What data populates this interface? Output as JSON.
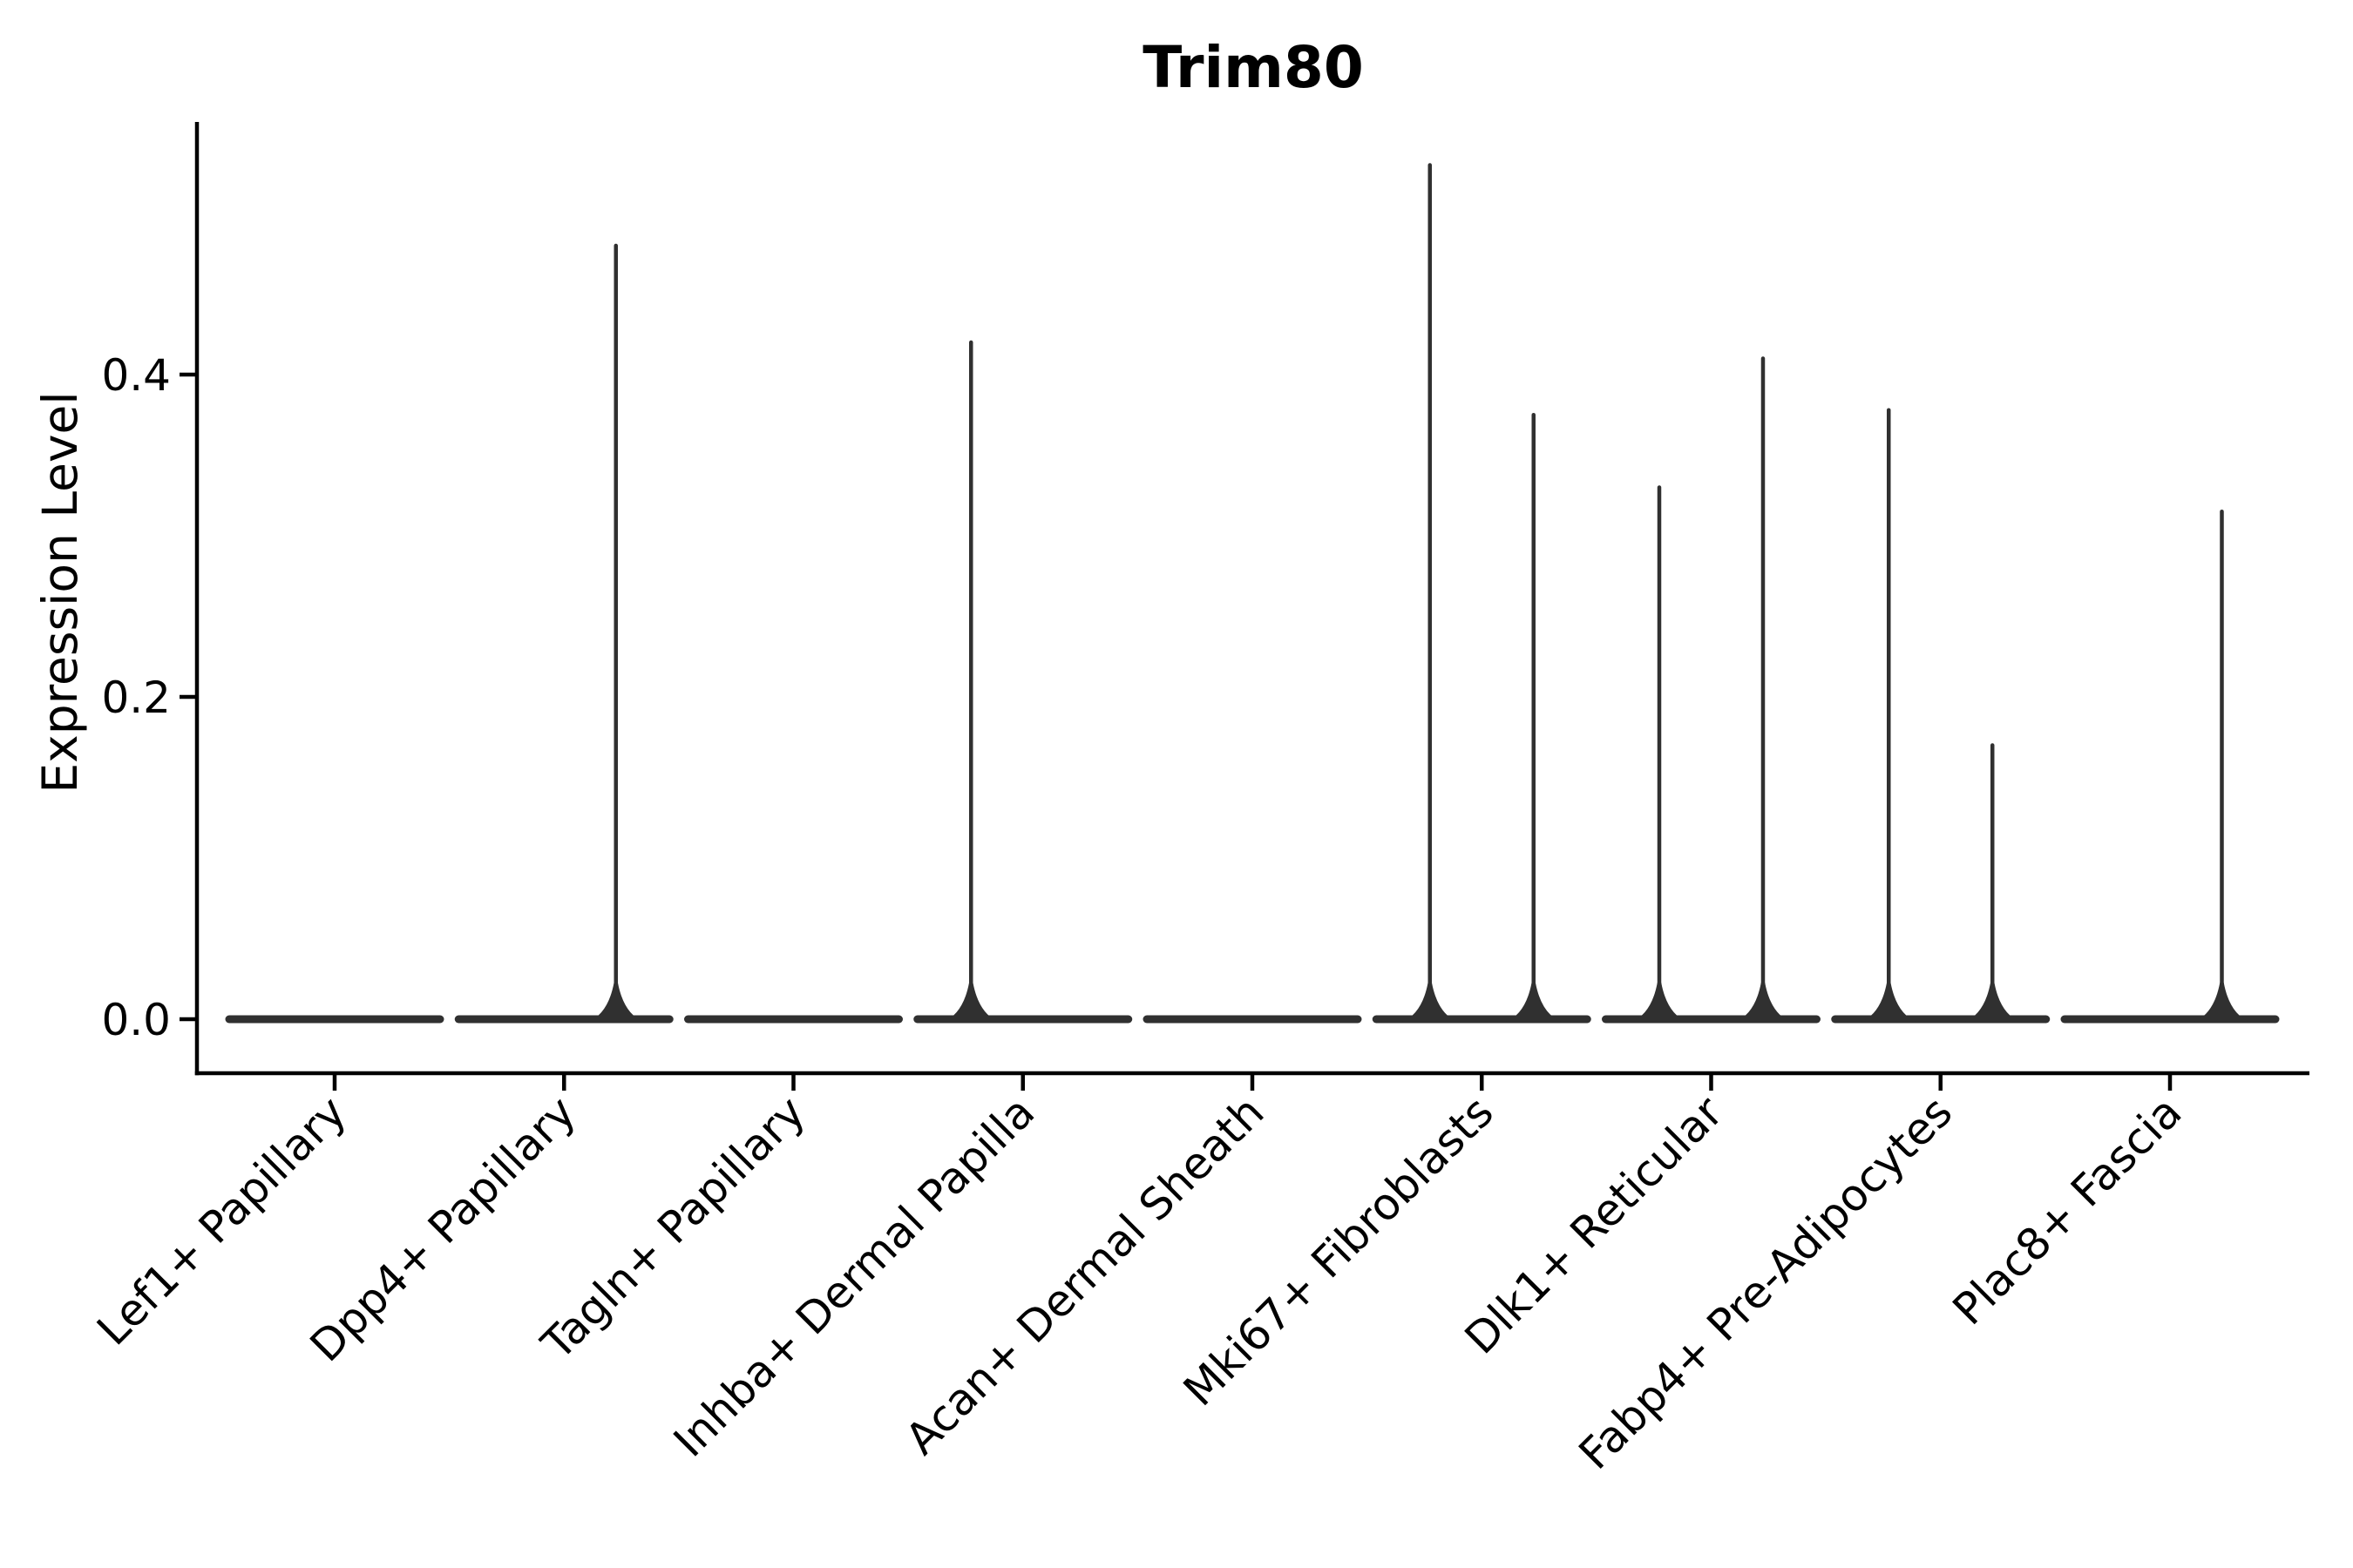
{
  "title": "Trim80",
  "y_axis": {
    "label": "Expression Level",
    "tick_labels": [
      "0.0",
      "0.2",
      "0.4"
    ],
    "tick_values": [
      0.0,
      0.2,
      0.4
    ]
  },
  "x_axis": {
    "categories": [
      "Lef1+ Papillary",
      "Dpp4+ Papillary",
      "Tagln+ Papillary",
      "Inhba+ Dermal Papilla",
      "Acan+ Dermal Sheath",
      "Mki67+ Fibroblasts",
      "Dlk1+ Reticular",
      "Fabp4+ Pre-Adipocytes",
      "Plac8+ Fascia"
    ]
  },
  "chart_data": {
    "type": "violin",
    "title": "Trim80",
    "xlabel": "",
    "ylabel": "Expression Level",
    "ylim": [
      0,
      0.556
    ],
    "yticks": [
      0.0,
      0.2,
      0.4
    ],
    "ytick_labels": [
      "0.0",
      "0.2",
      "0.4"
    ],
    "grid": false,
    "legend_position": "none",
    "violin_width": 0.92,
    "colors": {
      "violin": "#303030",
      "axis": "#000000",
      "background": "#ffffff"
    },
    "categories": [
      "Lef1+ Papillary",
      "Dpp4+ Papillary",
      "Tagln+ Papillary",
      "Inhba+ Dermal Papilla",
      "Acan+ Dermal Sheath",
      "Mki67+ Fibroblasts",
      "Dlk1+ Reticular",
      "Fabp4+ Pre-Adipocytes",
      "Plac8+ Fascia"
    ],
    "series": [
      {
        "name": "Lef1+ Papillary",
        "base_value": 0.0,
        "spikes": []
      },
      {
        "name": "Dpp4+ Papillary",
        "base_value": 0.0,
        "spikes": [
          {
            "offset": 0.226,
            "value": 0.48
          }
        ]
      },
      {
        "name": "Tagln+ Papillary",
        "base_value": 0.0,
        "spikes": []
      },
      {
        "name": "Inhba+ Dermal Papilla",
        "base_value": 0.0,
        "spikes": [
          {
            "offset": -0.226,
            "value": 0.42
          }
        ]
      },
      {
        "name": "Acan+ Dermal Sheath",
        "base_value": 0.0,
        "spikes": []
      },
      {
        "name": "Mki67+ Fibroblasts",
        "base_value": 0.0,
        "spikes": [
          {
            "offset": -0.226,
            "value": 0.53
          },
          {
            "offset": 0.226,
            "value": 0.375
          }
        ]
      },
      {
        "name": "Dlk1+ Reticular",
        "base_value": 0.0,
        "spikes": [
          {
            "offset": -0.226,
            "value": 0.33
          },
          {
            "offset": 0.226,
            "value": 0.41
          }
        ]
      },
      {
        "name": "Fabp4+ Pre-Adipocytes",
        "base_value": 0.0,
        "spikes": [
          {
            "offset": -0.226,
            "value": 0.378
          },
          {
            "offset": 0.226,
            "value": 0.17
          }
        ]
      },
      {
        "name": "Plac8+ Fascia",
        "base_value": 0.0,
        "spikes": [
          {
            "offset": 0.226,
            "value": 0.315
          }
        ]
      }
    ]
  }
}
